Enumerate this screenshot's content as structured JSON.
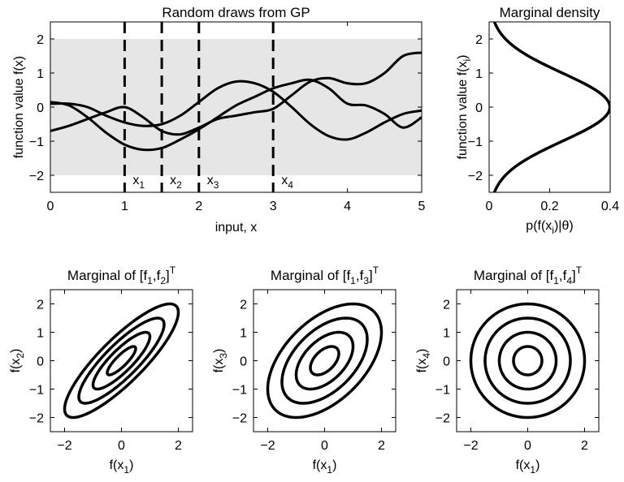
{
  "chart_data": [
    {
      "type": "line",
      "title": "Random draws from GP",
      "xlabel": "input, x",
      "ylabel": "function value f(x)",
      "xlim": [
        0,
        5
      ],
      "ylim": [
        -2.5,
        2.5
      ],
      "xticks": [
        "0",
        "1",
        "2",
        "3",
        "4",
        "5"
      ],
      "yticks": [
        "2",
        "1",
        "0",
        "-1",
        "-2"
      ],
      "band": {
        "lower": -2,
        "upper": 2,
        "color": "#e6e6e6"
      },
      "series": [
        {
          "x": [
            0,
            0.25,
            0.5,
            0.75,
            1,
            1.25,
            1.5,
            1.75,
            2,
            2.25,
            2.5,
            2.75,
            3,
            3.25,
            3.5,
            3.75,
            4,
            4.25,
            4.5,
            4.75,
            5
          ],
          "y": [
            0.15,
            0.05,
            -0.3,
            -0.75,
            -1.1,
            -1.25,
            -1.2,
            -0.95,
            -0.65,
            -0.3,
            0.05,
            0.3,
            0.55,
            0.7,
            0.8,
            0.55,
            0.1,
            0.05,
            -0.2,
            -0.6,
            -0.3
          ]
        },
        {
          "x": [
            0,
            0.25,
            0.5,
            0.75,
            1,
            1.25,
            1.5,
            1.75,
            2,
            2.25,
            2.5,
            2.75,
            3,
            3.25,
            3.5,
            3.75,
            4,
            4.25,
            4.5,
            4.75,
            5
          ],
          "y": [
            0.1,
            0.1,
            0.0,
            -0.25,
            -0.45,
            -0.55,
            -0.5,
            -0.25,
            0.15,
            0.55,
            0.75,
            0.7,
            0.45,
            0.0,
            -0.5,
            -0.85,
            -0.95,
            -0.75,
            -0.45,
            -0.2,
            -0.1
          ]
        },
        {
          "x": [
            0,
            0.25,
            0.5,
            0.75,
            1,
            1.25,
            1.5,
            1.75,
            2,
            2.25,
            2.5,
            2.75,
            3,
            3.25,
            3.5,
            3.75,
            4,
            4.25,
            4.5,
            4.75,
            5
          ],
          "y": [
            -0.7,
            -0.55,
            -0.35,
            -0.15,
            0.0,
            -0.3,
            -0.7,
            -0.8,
            -0.6,
            -0.35,
            -0.25,
            -0.15,
            -0.05,
            0.35,
            0.75,
            0.85,
            0.7,
            0.7,
            1.0,
            1.5,
            1.6
          ]
        }
      ],
      "markers": [
        {
          "x": 1,
          "label": "x",
          "sub": "1"
        },
        {
          "x": 1.5,
          "label": "x",
          "sub": "2"
        },
        {
          "x": 2,
          "label": "x",
          "sub": "3"
        },
        {
          "x": 3,
          "label": "x",
          "sub": "4"
        }
      ]
    },
    {
      "type": "line",
      "title": "Marginal density",
      "ylabel_main": "function value f(x",
      "ylabel_sub": "i",
      "ylabel_end": ")",
      "xlabel_pre": "p(f(x",
      "xlabel_sub": "i",
      "xlabel_post": ")|θ)",
      "xlim": [
        0,
        0.4
      ],
      "ylim": [
        -2.5,
        2.5
      ],
      "xticks": [
        "0",
        "0.2",
        "0.4"
      ],
      "yticks": [
        "2",
        "1",
        "0",
        "-1",
        "-2"
      ],
      "density": "standard normal"
    },
    {
      "type": "contour",
      "title_pre": "Marginal of [f",
      "title_s1": "1",
      "title_mid": ",f",
      "title_s2": "2",
      "title_post": "]",
      "title_sup": "T",
      "xlabel_pre": "f(x",
      "xlabel_sub": "1",
      "xlabel_post": ")",
      "ylabel_pre": "f(x",
      "ylabel_sub": "2",
      "ylabel_post": ")",
      "correlation": 0.85,
      "levels": [
        0.5,
        1.0,
        1.5,
        2.0
      ],
      "xlim": [
        -2.5,
        2.5
      ],
      "ylim": [
        -2.5,
        2.5
      ],
      "xticks": [
        "-2",
        "0",
        "2"
      ],
      "yticks": [
        "2",
        "1",
        "0",
        "-1",
        "-2"
      ]
    },
    {
      "type": "contour",
      "title_pre": "Marginal of [f",
      "title_s1": "1",
      "title_mid": ",f",
      "title_s2": "3",
      "title_post": "]",
      "title_sup": "T",
      "xlabel_pre": "f(x",
      "xlabel_sub": "1",
      "xlabel_post": ")",
      "ylabel_pre": "f(x",
      "ylabel_sub": "3",
      "ylabel_post": ")",
      "correlation": 0.5,
      "levels": [
        0.5,
        1.0,
        1.5,
        2.0
      ],
      "xlim": [
        -2.5,
        2.5
      ],
      "ylim": [
        -2.5,
        2.5
      ],
      "xticks": [
        "-2",
        "0",
        "2"
      ],
      "yticks": [
        "2",
        "1",
        "0",
        "-1",
        "-2"
      ]
    },
    {
      "type": "contour",
      "title_pre": "Marginal of [f",
      "title_s1": "1",
      "title_mid": ",f",
      "title_s2": "4",
      "title_post": "]",
      "title_sup": "T",
      "xlabel_pre": "f(x",
      "xlabel_sub": "1",
      "xlabel_post": ")",
      "ylabel_pre": "f(x",
      "ylabel_sub": "4",
      "ylabel_post": ")",
      "correlation": 0.0,
      "levels": [
        0.5,
        1.0,
        1.5,
        2.0
      ],
      "xlim": [
        -2.5,
        2.5
      ],
      "ylim": [
        -2.5,
        2.5
      ],
      "xticks": [
        "-2",
        "0",
        "2"
      ],
      "yticks": [
        "2",
        "1",
        "0",
        "-1",
        "-2"
      ]
    }
  ]
}
